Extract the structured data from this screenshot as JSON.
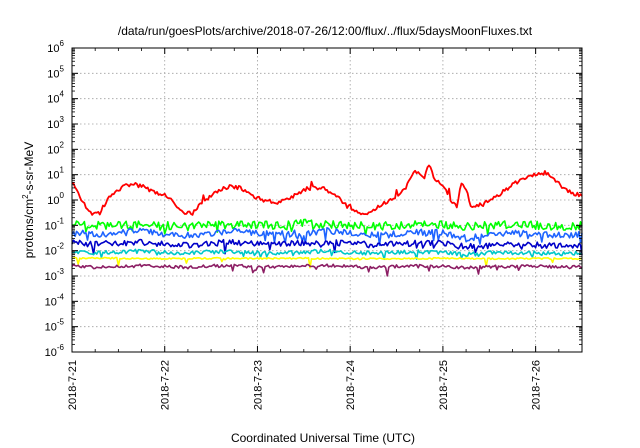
{
  "chart_data": {
    "type": "line",
    "title": "/data/run/goesPlots/archive/2018-07-26/12:00/flux/../flux/5daysMoonFluxes.txt",
    "xlabel": "Coordinated Universal Time (UTC)",
    "ylabel": "protons/cm2-s-sr-MeV",
    "ylabel_parts": {
      "pre": "protons/cm",
      "sup": "2",
      "post": "-s-sr-MeV"
    },
    "y_scale": "log",
    "ylim_exp": [
      -6,
      6
    ],
    "y_tick_base": "10",
    "y_tick_exponents": [
      "-6",
      "-5",
      "-4",
      "-3",
      "-2",
      "-1",
      "0",
      "1",
      "2",
      "3",
      "4",
      "5",
      "6"
    ],
    "xlim_days": [
      "2018-07-21T00:00",
      "2018-07-26T12:00"
    ],
    "x_tick_labels": [
      "2018-7-21",
      "2018-7-22",
      "2018-7-23",
      "2018-7-24",
      "2018-7-25",
      "2018-7-26"
    ],
    "grid": true,
    "legend": "none",
    "series": [
      {
        "color": "#ff0000",
        "x": [
          0,
          0.1,
          0.2,
          0.3,
          0.4,
          0.5,
          0.6,
          0.7,
          0.8,
          0.9,
          1.0,
          1.1,
          1.2,
          1.3,
          1.4,
          1.5,
          1.6,
          1.7,
          1.8,
          1.9,
          2.0,
          2.1,
          2.2,
          2.3,
          2.4,
          2.5,
          2.6,
          2.7,
          2.8,
          2.9,
          3.0,
          3.1,
          3.2,
          3.3,
          3.4,
          3.5,
          3.6,
          3.65,
          3.7,
          3.75,
          3.8,
          3.85,
          3.9,
          3.95,
          4.0,
          4.05,
          4.1,
          4.15,
          4.2,
          4.25,
          4.3,
          4.4,
          4.5,
          4.6,
          4.7,
          4.8,
          4.9,
          5.0,
          5.1,
          5.2,
          5.3,
          5.4,
          5.5
        ],
        "y": [
          5,
          1,
          0.3,
          0.3,
          1.5,
          2.5,
          4,
          4,
          3,
          2,
          1.5,
          0.8,
          0.3,
          0.3,
          0.8,
          1.5,
          2.5,
          3.5,
          3,
          2,
          1.2,
          0.9,
          0.8,
          1,
          1.5,
          2.5,
          3.2,
          3,
          2,
          1,
          0.4,
          0.3,
          0.3,
          0.5,
          0.9,
          1.5,
          3,
          8,
          15,
          10,
          8,
          25,
          8,
          5,
          4,
          2,
          0.8,
          0.5,
          5,
          3,
          0.6,
          0.6,
          0.9,
          1.5,
          3,
          5,
          8,
          10,
          12,
          7,
          3,
          1.8,
          1.5
        ]
      },
      {
        "color": "#00ff00",
        "x": [
          0,
          0.25,
          0.5,
          0.75,
          1.0,
          1.25,
          1.5,
          1.75,
          2.0,
          2.25,
          2.5,
          2.75,
          3.0,
          3.25,
          3.5,
          3.75,
          4.0,
          4.25,
          4.5,
          4.75,
          5.0,
          5.25,
          5.5
        ],
        "y": [
          0.12,
          0.1,
          0.1,
          0.11,
          0.1,
          0.09,
          0.1,
          0.11,
          0.1,
          0.1,
          0.12,
          0.11,
          0.1,
          0.09,
          0.1,
          0.12,
          0.11,
          0.09,
          0.1,
          0.11,
          0.1,
          0.09,
          0.1
        ]
      },
      {
        "color": "#1e64ff",
        "x": [
          0,
          0.25,
          0.5,
          0.75,
          1.0,
          1.25,
          1.5,
          1.75,
          2.0,
          2.25,
          2.5,
          2.75,
          3.0,
          3.25,
          3.5,
          3.75,
          4.0,
          4.25,
          4.5,
          4.75,
          5.0,
          5.25,
          5.5
        ],
        "y": [
          0.05,
          0.045,
          0.05,
          0.06,
          0.045,
          0.04,
          0.05,
          0.055,
          0.05,
          0.045,
          0.05,
          0.06,
          0.05,
          0.04,
          0.045,
          0.055,
          0.05,
          0.03,
          0.04,
          0.05,
          0.045,
          0.04,
          0.045
        ]
      },
      {
        "color": "#0000c8",
        "x": [
          0,
          0.25,
          0.5,
          0.75,
          1.0,
          1.25,
          1.5,
          1.75,
          2.0,
          2.25,
          2.5,
          2.75,
          3.0,
          3.25,
          3.5,
          3.75,
          4.0,
          4.25,
          4.5,
          4.75,
          5.0,
          5.25,
          5.5
        ],
        "y": [
          0.02,
          0.018,
          0.02,
          0.022,
          0.018,
          0.016,
          0.02,
          0.021,
          0.02,
          0.018,
          0.02,
          0.022,
          0.019,
          0.017,
          0.018,
          0.02,
          0.019,
          0.014,
          0.016,
          0.018,
          0.017,
          0.015,
          0.016
        ]
      },
      {
        "color": "#00c8c8",
        "x": [
          0,
          0.25,
          0.5,
          0.75,
          1.0,
          1.25,
          1.5,
          1.75,
          2.0,
          2.25,
          2.5,
          2.75,
          3.0,
          3.25,
          3.5,
          3.75,
          4.0,
          4.25,
          4.5,
          4.75,
          5.0,
          5.25,
          5.5
        ],
        "y": [
          0.009,
          0.008,
          0.009,
          0.0095,
          0.0085,
          0.008,
          0.009,
          0.009,
          0.0085,
          0.008,
          0.009,
          0.0095,
          0.0085,
          0.008,
          0.0085,
          0.009,
          0.0085,
          0.007,
          0.008,
          0.0085,
          0.008,
          0.0075,
          0.008
        ]
      },
      {
        "color": "#ffff00",
        "x": [
          0,
          0.5,
          1.0,
          1.5,
          2.0,
          2.5,
          3.0,
          3.5,
          4.0,
          4.5,
          5.0,
          5.5
        ],
        "y": [
          0.005,
          0.005,
          0.0048,
          0.005,
          0.0049,
          0.005,
          0.0048,
          0.0049,
          0.005,
          0.0048,
          0.0049,
          0.0048
        ]
      },
      {
        "color": "#8c1e64",
        "x": [
          0,
          0.25,
          0.5,
          0.75,
          1.0,
          1.25,
          1.5,
          1.75,
          2.0,
          2.25,
          2.5,
          2.75,
          3.0,
          3.25,
          3.5,
          3.75,
          4.0,
          4.25,
          4.5,
          4.75,
          5.0,
          5.25,
          5.5
        ],
        "y": [
          0.0025,
          0.0022,
          0.0025,
          0.0026,
          0.0024,
          0.0022,
          0.0025,
          0.0025,
          0.0024,
          0.0023,
          0.0025,
          0.0026,
          0.0024,
          0.0021,
          0.0024,
          0.0025,
          0.0024,
          0.0021,
          0.0023,
          0.0024,
          0.0024,
          0.0022,
          0.0023
        ]
      }
    ]
  }
}
